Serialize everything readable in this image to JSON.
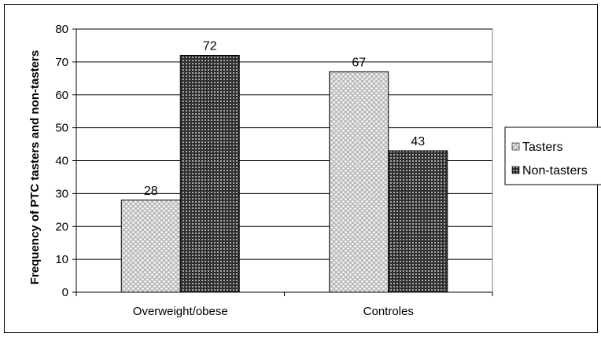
{
  "chart_data": {
    "type": "bar",
    "title": "",
    "xlabel": "",
    "ylabel": "Frequency of PTC tasters and non-tasters",
    "categories": [
      "Overweight/obese",
      "Controles"
    ],
    "series": [
      {
        "name": "Tasters",
        "values": [
          28,
          67
        ],
        "pattern": "light-dotted",
        "color": "#bdbdbd"
      },
      {
        "name": "Non-tasters",
        "values": [
          72,
          43
        ],
        "pattern": "dark-grid",
        "color": "#333333"
      }
    ],
    "ylim": [
      0,
      80
    ],
    "yticks": [
      0,
      10,
      20,
      30,
      40,
      50,
      60,
      70,
      80
    ],
    "grid": true,
    "legend": "right",
    "data_labels": true
  }
}
